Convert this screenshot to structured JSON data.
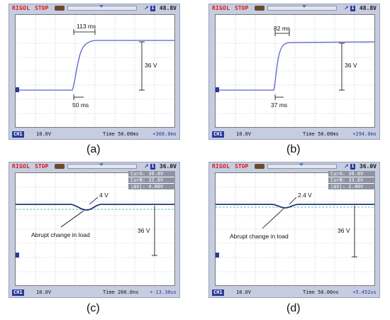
{
  "panels": [
    {
      "caption": "(a)",
      "brand": "RIGOL",
      "state": "STOP",
      "trig_value": "48.8V",
      "trig_ch": "1",
      "ch_label": "CH1",
      "ch_scale": "10.0V",
      "timebase": "Time 50.00ms",
      "offset": "+368.0ms",
      "annotations": {
        "width": "113 ms",
        "rise": "50 ms",
        "amp": "36 V"
      }
    },
    {
      "caption": "(b)",
      "brand": "RIGOL",
      "state": "STOP",
      "trig_value": "48.8V",
      "trig_ch": "1",
      "ch_label": "CH1",
      "ch_scale": "10.0V",
      "timebase": "Time 50.00ms",
      "offset": "+294.0ms",
      "annotations": {
        "width": "82 ms",
        "rise": "37 ms",
        "amp": "36 V"
      }
    },
    {
      "caption": "(c)",
      "brand": "RIGOL",
      "state": "STOP",
      "trig_value": "36.0V",
      "trig_ch": "1",
      "ch_label": "CH1",
      "ch_scale": "10.0V",
      "timebase": "Time 200.0ns",
      "offset": "+-13.38us",
      "cursors": {
        "a": "CurA: 36.0V",
        "b": "CurB: 32.0V",
        "d": "|ΔV|: 4.00V"
      },
      "annotations": {
        "dip": "4 V",
        "note": "Abrupt change in load",
        "amp": "36 V"
      }
    },
    {
      "caption": "(d)",
      "brand": "RIGOL",
      "state": "STOP",
      "trig_value": "36.0V",
      "trig_ch": "1",
      "ch_label": "CH1",
      "ch_scale": "10.0V",
      "timebase": "Time 50.00ns",
      "offset": "+5.452us",
      "cursors": {
        "a": "CurA: 36.0V",
        "b": "CurB: 33.6V",
        "d": "|ΔV|: 2.40V"
      },
      "annotations": {
        "dip": "2.4 V",
        "note": "Abrupt change in load",
        "amp": "36 V"
      }
    }
  ],
  "colors": {
    "trace": "#5a63c8",
    "grid": "#9aa3c0",
    "bezel": "#c7cde0",
    "brand": "#d91a1a"
  }
}
